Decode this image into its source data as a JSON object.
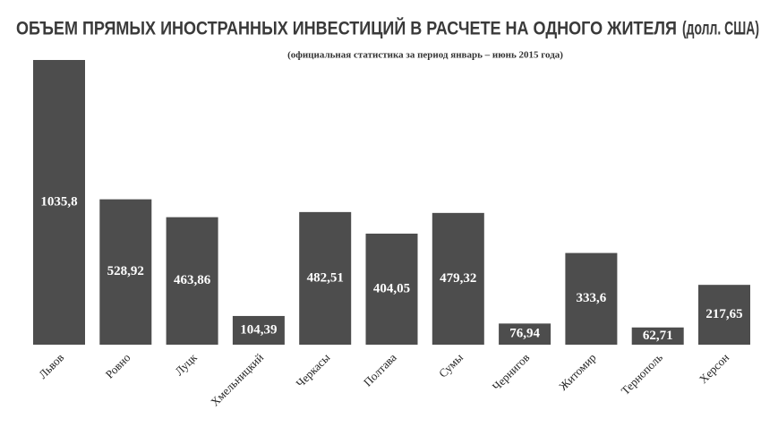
{
  "chart_data": {
    "type": "bar",
    "title": "ОБЪЕМ ПРЯМЫХ ИНОСТРАННЫХ ИНВЕСТИЦИЙ В РАСЧЕТЕ НА ОДНОГО ЖИТЕЛЯ",
    "unit": "(долл. США)",
    "subtitle": "(официальная статистика за период январь – июнь 2015 года)",
    "categories": [
      "Львов",
      "Ровно",
      "Луцк",
      "Хмельницкий",
      "Черкасы",
      "Полтава",
      "Сумы",
      "Чернигов",
      "Житомир",
      "Тернополь",
      "Херсон"
    ],
    "values": [
      1035.8,
      528.92,
      463.86,
      104.39,
      482.51,
      404.05,
      479.32,
      76.94,
      333.6,
      62.71,
      217.65
    ],
    "value_labels": [
      "1035,8",
      "528,92",
      "463,86",
      "104,39",
      "482,51",
      "404,05",
      "479,32",
      "76,94",
      "333,6",
      "62,71",
      "217,65"
    ],
    "color": "#4d4d4d"
  }
}
